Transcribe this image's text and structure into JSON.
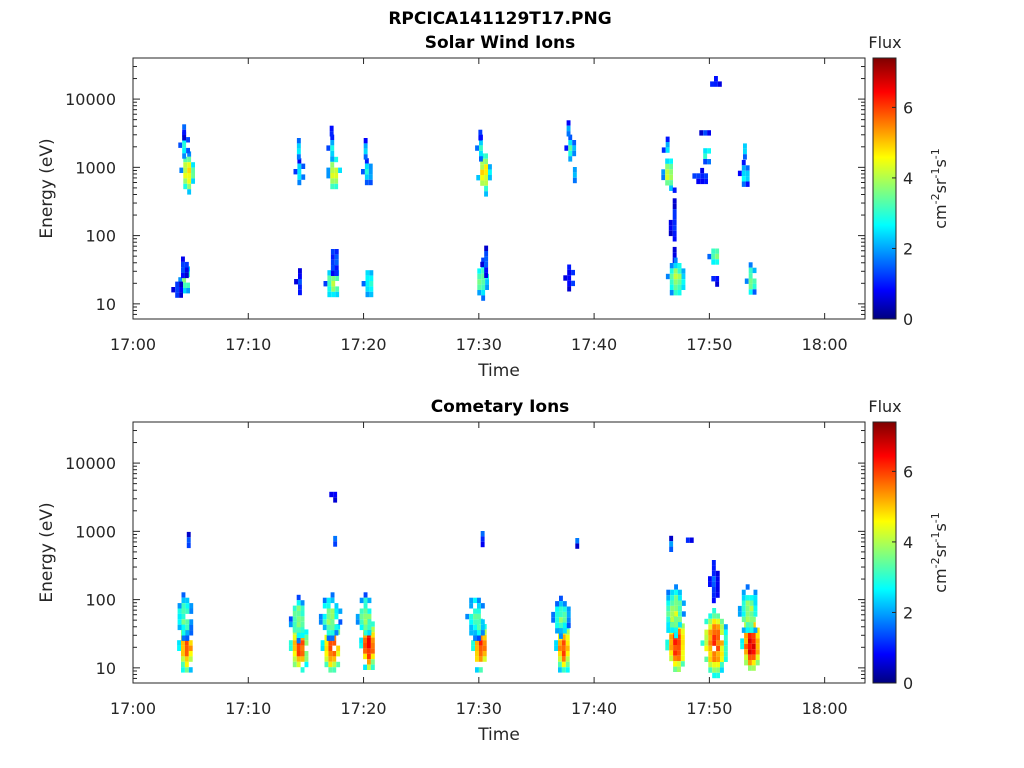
{
  "chart_data": [
    {
      "type": "heatmap",
      "suptitle": "RPCICA141129T17.PNG",
      "title": "Solar Wind Ions",
      "xlabel": "Time",
      "ylabel": "Energy (eV)",
      "yscale": "log",
      "xlim": [
        "17:00",
        "18:03"
      ],
      "ylim": [
        6,
        40000
      ],
      "xticks": [
        "17:00",
        "17:10",
        "17:20",
        "17:30",
        "17:40",
        "17:50",
        "18:00"
      ],
      "yticks": [
        "10",
        "100",
        "1000",
        "10000"
      ],
      "colorbar": {
        "title": "Flux",
        "label": "eV-1cm-2sr-1s-1",
        "range": [
          0,
          7.4
        ],
        "ticks": [
          "0",
          "2",
          "4",
          "6"
        ],
        "colormap": "jet"
      },
      "blobs": [
        {
          "t": 4.6,
          "e": 900,
          "w": 0.8,
          "h": 0.25,
          "v": 4.8
        },
        {
          "t": 4.3,
          "e": 2200,
          "w": 0.4,
          "h": 0.15,
          "v": 3.0
        },
        {
          "t": 4.2,
          "e": 3800,
          "w": 0.2,
          "h": 0.1,
          "v": 1.5
        },
        {
          "t": 4.4,
          "e": 25,
          "w": 0.6,
          "h": 0.2,
          "v": 3.8
        },
        {
          "t": 3.8,
          "e": 18,
          "w": 0.6,
          "h": 0.12,
          "v": 1.2
        },
        {
          "t": 4.2,
          "e": 35,
          "w": 0.4,
          "h": 0.12,
          "v": 1.5
        },
        {
          "t": 14.3,
          "e": 900,
          "w": 0.4,
          "h": 0.15,
          "v": 2.8
        },
        {
          "t": 14.2,
          "e": 2000,
          "w": 0.3,
          "h": 0.1,
          "v": 3.0
        },
        {
          "t": 14.3,
          "e": 22,
          "w": 0.3,
          "h": 0.15,
          "v": 1.2
        },
        {
          "t": 17.3,
          "e": 900,
          "w": 0.7,
          "h": 0.25,
          "v": 4.8
        },
        {
          "t": 17.1,
          "e": 2000,
          "w": 0.3,
          "h": 0.15,
          "v": 2.8
        },
        {
          "t": 17.0,
          "e": 3800,
          "w": 0.2,
          "h": 0.08,
          "v": 1.4
        },
        {
          "t": 17.2,
          "e": 22,
          "w": 1.0,
          "h": 0.2,
          "v": 3.8
        },
        {
          "t": 17.3,
          "e": 45,
          "w": 0.6,
          "h": 0.2,
          "v": 1.6
        },
        {
          "t": 20.2,
          "e": 900,
          "w": 0.5,
          "h": 0.15,
          "v": 2.9
        },
        {
          "t": 20.0,
          "e": 2000,
          "w": 0.3,
          "h": 0.1,
          "v": 2.6
        },
        {
          "t": 20.3,
          "e": 22,
          "w": 0.6,
          "h": 0.2,
          "v": 3.2
        },
        {
          "t": 30.3,
          "e": 900,
          "w": 0.7,
          "h": 0.3,
          "v": 4.9
        },
        {
          "t": 30.0,
          "e": 2000,
          "w": 0.3,
          "h": 0.15,
          "v": 3.0
        },
        {
          "t": 29.9,
          "e": 3800,
          "w": 0.2,
          "h": 0.1,
          "v": 1.5
        },
        {
          "t": 30.1,
          "e": 25,
          "w": 0.8,
          "h": 0.25,
          "v": 3.9
        },
        {
          "t": 30.4,
          "e": 45,
          "w": 0.2,
          "h": 0.25,
          "v": 1.3
        },
        {
          "t": 37.8,
          "e": 2000,
          "w": 0.4,
          "h": 0.15,
          "v": 3.2
        },
        {
          "t": 37.6,
          "e": 3800,
          "w": 0.3,
          "h": 0.08,
          "v": 2.0
        },
        {
          "t": 38.1,
          "e": 900,
          "w": 0.2,
          "h": 0.1,
          "v": 2.4
        },
        {
          "t": 37.7,
          "e": 25,
          "w": 0.4,
          "h": 0.15,
          "v": 1.2
        },
        {
          "t": 46.3,
          "e": 850,
          "w": 0.6,
          "h": 0.25,
          "v": 4.2
        },
        {
          "t": 46.2,
          "e": 2000,
          "w": 0.3,
          "h": 0.12,
          "v": 2.6
        },
        {
          "t": 46.8,
          "e": 150,
          "w": 0.3,
          "h": 0.5,
          "v": 1.0
        },
        {
          "t": 47.0,
          "e": 25,
          "w": 1.2,
          "h": 0.25,
          "v": 4.0
        },
        {
          "t": 49.6,
          "e": 3500,
          "w": 0.6,
          "h": 0.05,
          "v": 1.2
        },
        {
          "t": 49.6,
          "e": 1700,
          "w": 0.6,
          "h": 0.1,
          "v": 3.0
        },
        {
          "t": 49.2,
          "e": 800,
          "w": 1.0,
          "h": 0.06,
          "v": 1.4
        },
        {
          "t": 50.3,
          "e": 55,
          "w": 0.6,
          "h": 0.12,
          "v": 3.8
        },
        {
          "t": 50.3,
          "e": 25,
          "w": 0.6,
          "h": 0.06,
          "v": 1.2
        },
        {
          "t": 50.3,
          "e": 19000,
          "w": 0.8,
          "h": 0.03,
          "v": 0.8
        },
        {
          "t": 52.9,
          "e": 850,
          "w": 0.5,
          "h": 0.15,
          "v": 2.8
        },
        {
          "t": 52.9,
          "e": 2000,
          "w": 0.3,
          "h": 0.1,
          "v": 2.4
        },
        {
          "t": 53.5,
          "e": 24,
          "w": 0.5,
          "h": 0.2,
          "v": 3.8
        }
      ]
    },
    {
      "type": "heatmap",
      "title": "Cometary Ions",
      "xlabel": "Time",
      "ylabel": "Energy (eV)",
      "yscale": "log",
      "xlim": [
        "17:00",
        "18:03"
      ],
      "ylim": [
        6,
        40000
      ],
      "xticks": [
        "17:00",
        "17:10",
        "17:20",
        "17:30",
        "17:40",
        "17:50",
        "18:00"
      ],
      "yticks": [
        "10",
        "100",
        "1000",
        "10000"
      ],
      "colorbar": {
        "title": "Flux",
        "label": "eV-1cm-2sr-1s-1",
        "range": [
          0,
          7.4
        ],
        "ticks": [
          "0",
          "2",
          "4",
          "6"
        ],
        "colormap": "jet"
      },
      "blobs": [
        {
          "t": 4.5,
          "e": 22,
          "w": 1.0,
          "h": 0.35,
          "v": 6.0
        },
        {
          "t": 4.3,
          "e": 60,
          "w": 1.2,
          "h": 0.3,
          "v": 3.5
        },
        {
          "t": 4.7,
          "e": 800,
          "w": 0.4,
          "h": 0.06,
          "v": 1.6
        },
        {
          "t": 14.3,
          "e": 22,
          "w": 1.2,
          "h": 0.35,
          "v": 6.2
        },
        {
          "t": 14.2,
          "e": 55,
          "w": 1.0,
          "h": 0.3,
          "v": 4.0
        },
        {
          "t": 17.1,
          "e": 22,
          "w": 1.3,
          "h": 0.35,
          "v": 6.0
        },
        {
          "t": 17.0,
          "e": 60,
          "w": 1.4,
          "h": 0.3,
          "v": 3.8
        },
        {
          "t": 17.3,
          "e": 800,
          "w": 0.2,
          "h": 0.08,
          "v": 1.8
        },
        {
          "t": 17.3,
          "e": 3800,
          "w": 0.2,
          "h": 0.05,
          "v": 1.0
        },
        {
          "t": 20.3,
          "e": 24,
          "w": 1.0,
          "h": 0.35,
          "v": 6.6
        },
        {
          "t": 20.0,
          "e": 60,
          "w": 1.0,
          "h": 0.3,
          "v": 4.0
        },
        {
          "t": 30.0,
          "e": 22,
          "w": 1.0,
          "h": 0.35,
          "v": 6.2
        },
        {
          "t": 29.6,
          "e": 60,
          "w": 1.2,
          "h": 0.3,
          "v": 3.6
        },
        {
          "t": 30.1,
          "e": 900,
          "w": 0.2,
          "h": 0.1,
          "v": 1.6
        },
        {
          "t": 37.2,
          "e": 22,
          "w": 1.0,
          "h": 0.35,
          "v": 6.0
        },
        {
          "t": 37.0,
          "e": 60,
          "w": 1.1,
          "h": 0.25,
          "v": 3.6
        },
        {
          "t": 38.3,
          "e": 800,
          "w": 0.2,
          "h": 0.05,
          "v": 1.5
        },
        {
          "t": 47.0,
          "e": 24,
          "w": 1.3,
          "h": 0.4,
          "v": 6.4
        },
        {
          "t": 46.8,
          "e": 70,
          "w": 1.4,
          "h": 0.35,
          "v": 4.2
        },
        {
          "t": 46.5,
          "e": 700,
          "w": 0.3,
          "h": 0.06,
          "v": 2.0
        },
        {
          "t": 48.0,
          "e": 850,
          "w": 0.4,
          "h": 0.03,
          "v": 0.9
        },
        {
          "t": 50.3,
          "e": 25,
          "w": 1.8,
          "h": 0.45,
          "v": 6.0
        },
        {
          "t": 50.3,
          "e": 200,
          "w": 0.5,
          "h": 0.25,
          "v": 1.5
        },
        {
          "t": 53.5,
          "e": 25,
          "w": 1.3,
          "h": 0.4,
          "v": 6.8
        },
        {
          "t": 53.3,
          "e": 70,
          "w": 1.3,
          "h": 0.35,
          "v": 4.0
        }
      ]
    }
  ]
}
